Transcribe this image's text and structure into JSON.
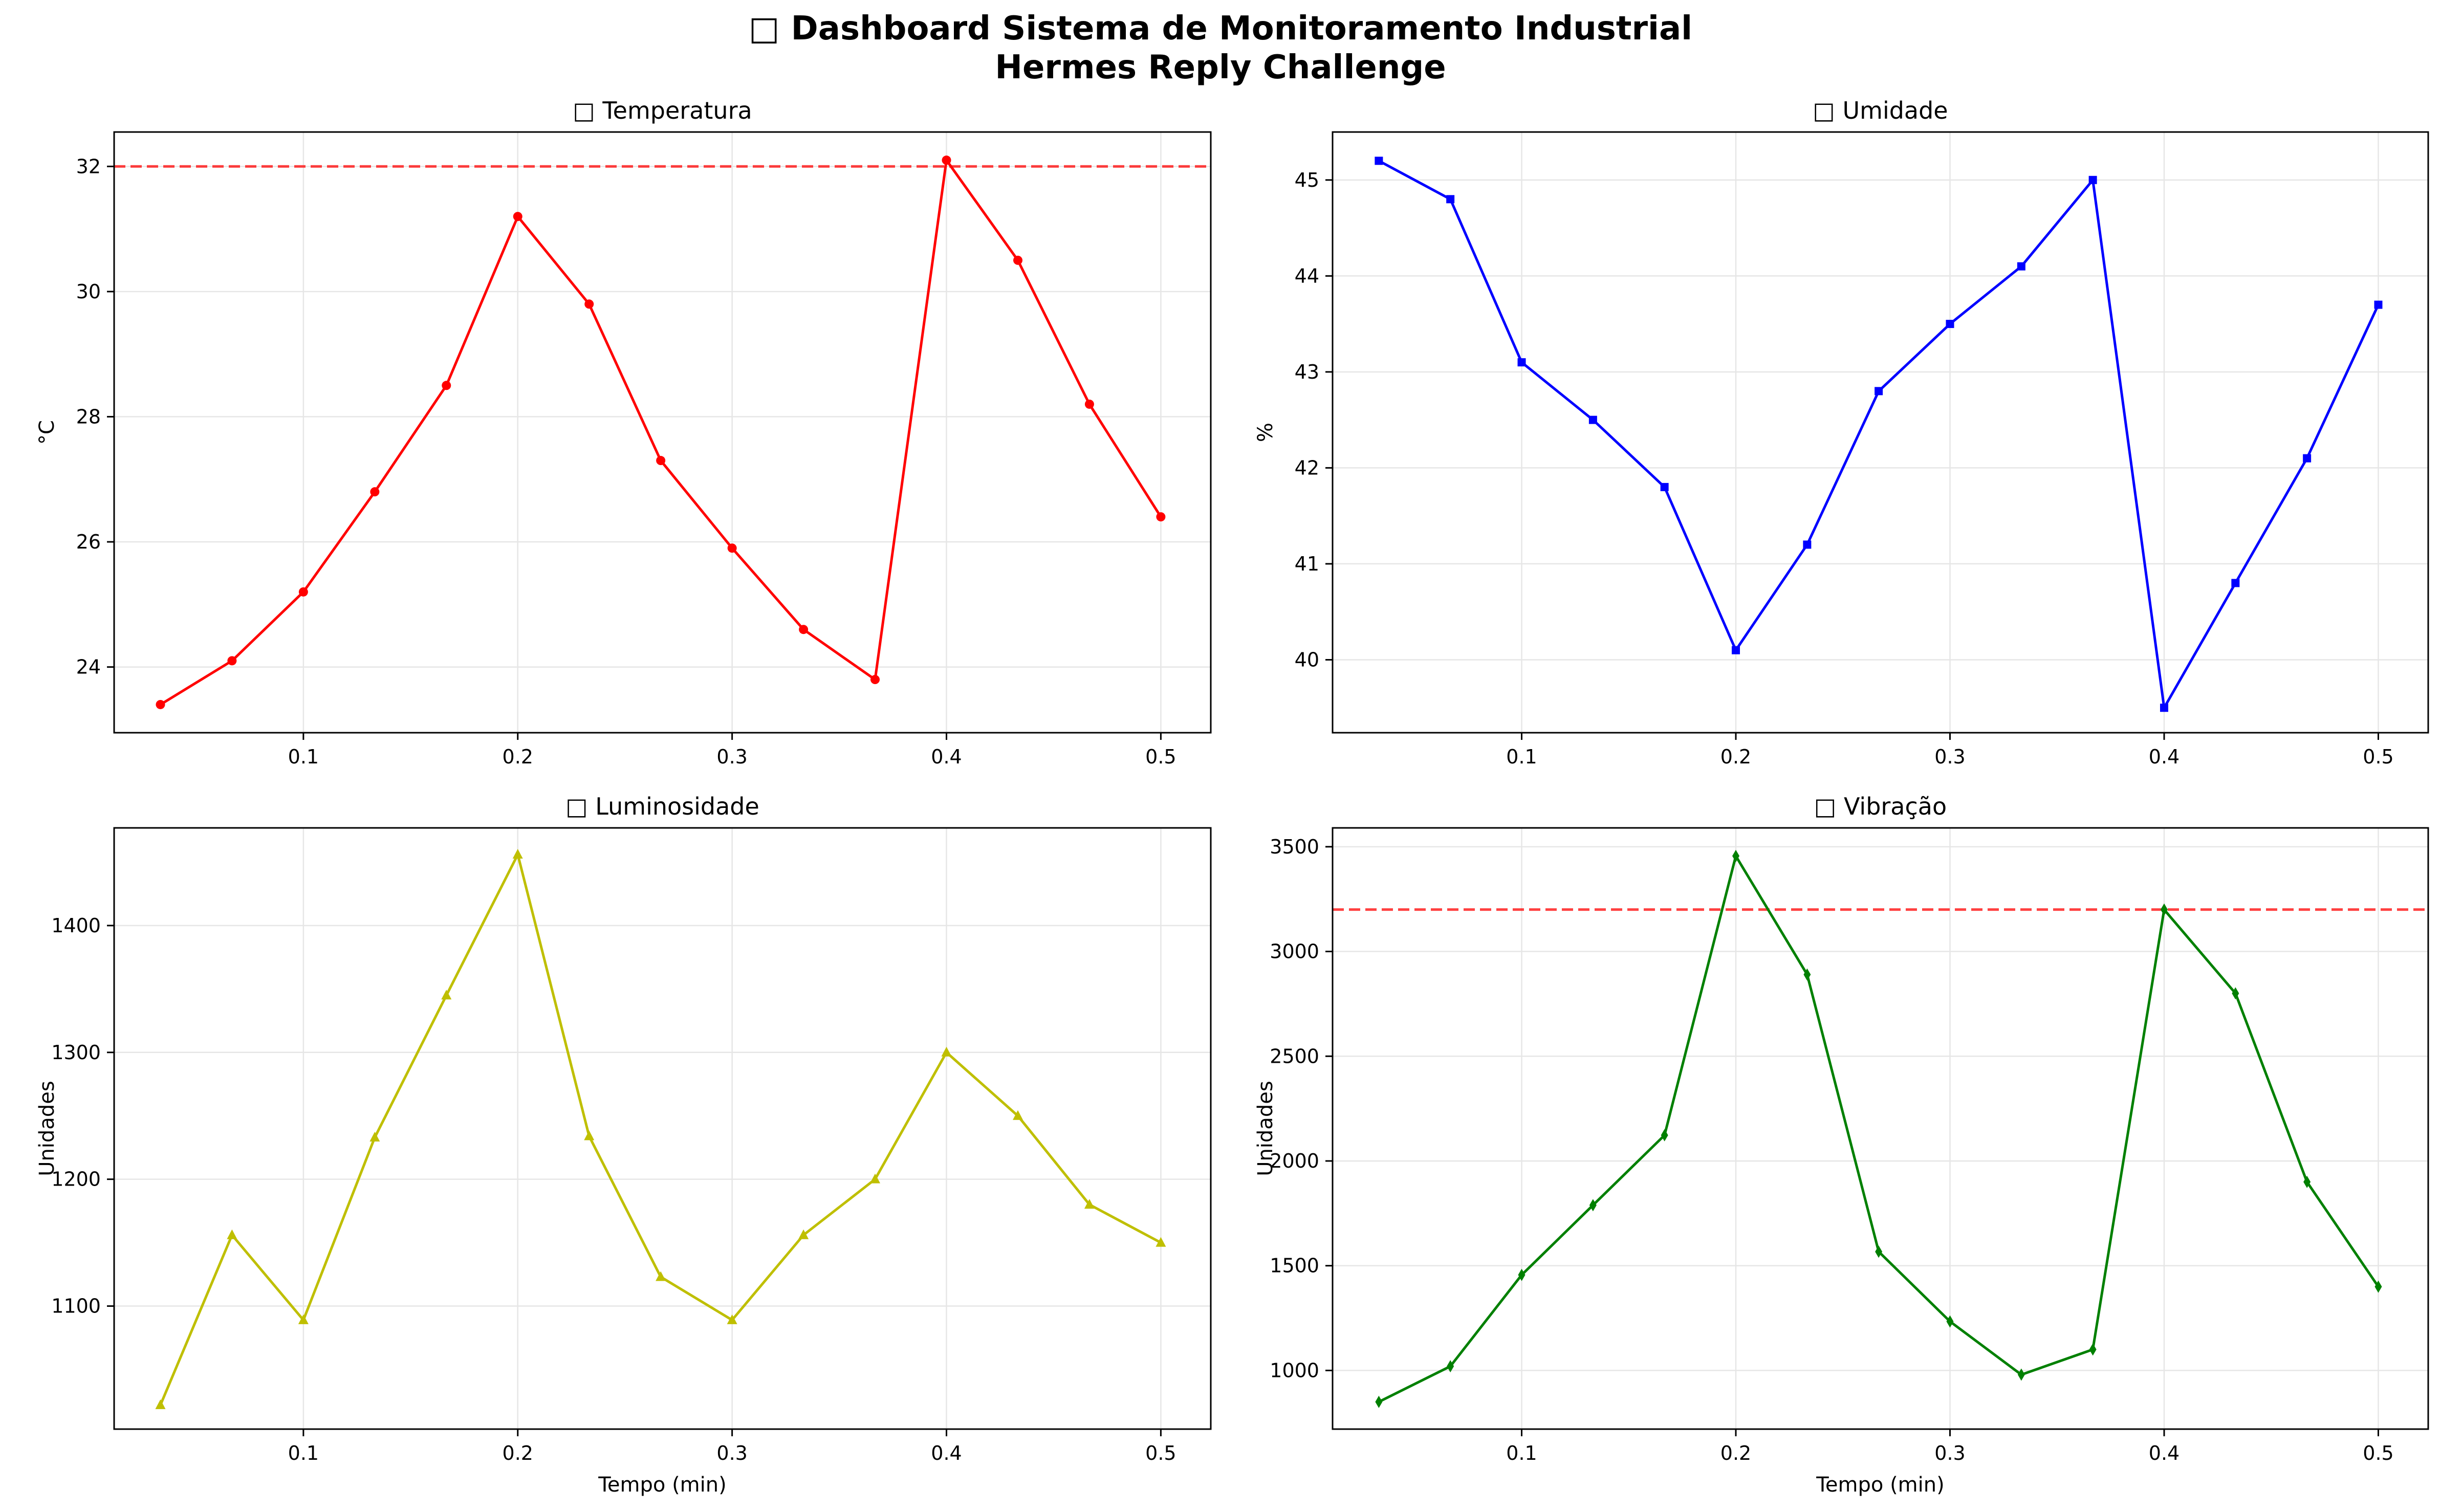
{
  "title_line1": "□ Dashboard Sistema de Monitoramento Industrial",
  "title_line2": "Hermes Reply Challenge",
  "chart_data": [
    {
      "type": "line",
      "title": "□ Temperatura",
      "xlabel": "",
      "ylabel": "°C",
      "x": [
        0.0333,
        0.0667,
        0.1,
        0.1333,
        0.1667,
        0.2,
        0.2333,
        0.2667,
        0.3,
        0.3333,
        0.3667,
        0.4,
        0.4333,
        0.4667,
        0.5
      ],
      "values": [
        23.4,
        24.1,
        25.2,
        26.8,
        28.5,
        31.2,
        29.8,
        27.3,
        25.9,
        24.6,
        23.8,
        32.1,
        30.5,
        28.2,
        26.4
      ],
      "xlim": [
        0.0117,
        0.5233
      ],
      "ylim": [
        22.95,
        32.55
      ],
      "xticks": [
        0.1,
        0.2,
        0.3,
        0.4,
        0.5
      ],
      "yticks": [
        24,
        26,
        28,
        30,
        32
      ],
      "threshold": 32,
      "color": "#ff0000",
      "marker": "circle",
      "grid": true
    },
    {
      "type": "line",
      "title": "□ Umidade",
      "xlabel": "",
      "ylabel": "%",
      "x": [
        0.0333,
        0.0667,
        0.1,
        0.1333,
        0.1667,
        0.2,
        0.2333,
        0.2667,
        0.3,
        0.3333,
        0.3667,
        0.4,
        0.4333,
        0.4667,
        0.5
      ],
      "values": [
        45.2,
        44.8,
        43.1,
        42.5,
        41.8,
        40.1,
        41.2,
        42.8,
        43.5,
        44.1,
        45.0,
        39.5,
        40.8,
        42.1,
        43.7
      ],
      "xlim": [
        0.0117,
        0.5233
      ],
      "ylim": [
        39.24,
        45.5
      ],
      "xticks": [
        0.1,
        0.2,
        0.3,
        0.4,
        0.5
      ],
      "yticks": [
        40,
        41,
        42,
        43,
        44,
        45
      ],
      "threshold": null,
      "color": "#0000ff",
      "marker": "square",
      "grid": true
    },
    {
      "type": "line",
      "title": "□ Luminosidade",
      "xlabel": "Tempo (min)",
      "ylabel": "Unidades",
      "x": [
        0.0333,
        0.0667,
        0.1,
        0.1333,
        0.1667,
        0.2,
        0.2333,
        0.2667,
        0.3,
        0.3333,
        0.3667,
        0.4,
        0.4333,
        0.4667,
        0.5
      ],
      "values": [
        1022,
        1156,
        1089,
        1233,
        1345,
        1456,
        1234,
        1123,
        1089,
        1156,
        1200,
        1300,
        1250,
        1180,
        1150
      ],
      "xlim": [
        0.0117,
        0.5233
      ],
      "ylim": [
        1003,
        1477
      ],
      "xticks": [
        0.1,
        0.2,
        0.3,
        0.4,
        0.5
      ],
      "yticks": [
        1100,
        1200,
        1300,
        1400
      ],
      "threshold": null,
      "color": "#bfbf00",
      "marker": "triangle",
      "grid": true
    },
    {
      "type": "line",
      "title": "□ Vibração",
      "xlabel": "Tempo (min)",
      "ylabel": "Unidades",
      "x": [
        0.0333,
        0.0667,
        0.1,
        0.1333,
        0.1667,
        0.2,
        0.2333,
        0.2667,
        0.3,
        0.3333,
        0.3667,
        0.4,
        0.4333,
        0.4667,
        0.5
      ],
      "values": [
        850,
        1020,
        1456,
        1789,
        2123,
        3456,
        2890,
        1567,
        1234,
        980,
        1100,
        3200,
        2800,
        1900,
        1400
      ],
      "xlim": [
        0.0117,
        0.5233
      ],
      "ylim": [
        720,
        3590
      ],
      "xticks": [
        0.1,
        0.2,
        0.3,
        0.4,
        0.5
      ],
      "yticks": [
        1000,
        1500,
        2000,
        2500,
        3000,
        3500
      ],
      "threshold": 3200,
      "color": "#008000",
      "marker": "diamond",
      "grid": true
    }
  ]
}
